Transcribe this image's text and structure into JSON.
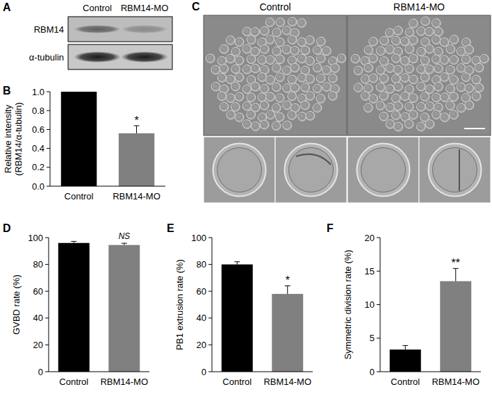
{
  "panel_labels": [
    "A",
    "B",
    "C",
    "D",
    "E",
    "F"
  ],
  "blot": {
    "lanes": [
      "Control",
      "RBM14-MO"
    ],
    "rows": [
      "RBM14",
      "α-tubulin"
    ]
  },
  "micrographs": {
    "groups": [
      "Control",
      "RBM14-MO"
    ]
  },
  "chart_data": [
    {
      "type": "bar",
      "y_label": "Relative intensity\n(RBM14/α-tubulin)",
      "categories": [
        "Control",
        "RBM14-MO"
      ],
      "values": [
        1.0,
        0.56
      ],
      "errors": [
        null,
        0.08
      ],
      "colors": [
        "#000000",
        "#808080"
      ],
      "ylim": [
        0,
        1
      ],
      "yticks": [
        {
          "value": 0,
          "label": "0.0"
        },
        {
          "value": 0.2,
          "label": "0.2"
        },
        {
          "value": 0.4,
          "label": "0.4"
        },
        {
          "value": 0.6,
          "label": "0.6"
        },
        {
          "value": 0.8,
          "label": "0.8"
        },
        {
          "value": 1,
          "label": "1.0"
        }
      ],
      "annotations": [
        {
          "text": "*",
          "category": "RBM14-MO"
        }
      ]
    },
    {
      "type": "bar",
      "y_label": "GVBD rate (%)",
      "categories": [
        "Control",
        "RBM14-MO"
      ],
      "values": [
        96,
        94.5
      ],
      "errors": [
        1.2,
        1.3
      ],
      "colors": [
        "#000000",
        "#808080"
      ],
      "ylim": [
        0,
        100
      ],
      "yticks": [
        0,
        20,
        40,
        60,
        80,
        100
      ],
      "annotations": [
        {
          "text": "NS",
          "category": "RBM14-MO"
        }
      ]
    },
    {
      "type": "bar",
      "y_label": "PB1 extrusion rate (%)",
      "categories": [
        "Control",
        "RBM14-MO"
      ],
      "values": [
        80,
        58
      ],
      "errors": [
        2,
        6
      ],
      "colors": [
        "#000000",
        "#808080"
      ],
      "ylim": [
        0,
        100
      ],
      "yticks": [
        0,
        20,
        40,
        60,
        80,
        100
      ],
      "annotations": [
        {
          "text": "*",
          "category": "RBM14-MO"
        }
      ]
    },
    {
      "type": "bar",
      "y_label": "Symmetric division rate (%)",
      "categories": [
        "Control",
        "RBM14-MO"
      ],
      "values": [
        3.3,
        13.5
      ],
      "errors": [
        0.6,
        1.9
      ],
      "colors": [
        "#000000",
        "#808080"
      ],
      "ylim": [
        0,
        20
      ],
      "yticks": [
        0,
        5,
        10,
        15,
        20
      ],
      "annotations": [
        {
          "text": "**",
          "category": "RBM14-MO"
        }
      ]
    }
  ]
}
